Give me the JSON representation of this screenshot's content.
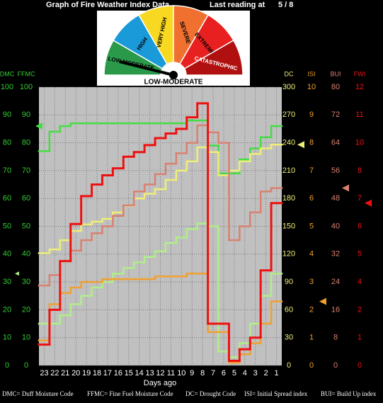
{
  "header": {
    "title": "Graph of Fire Weather Index Data",
    "last_reading_label": "Last reading at",
    "last_reading": "5 / 8"
  },
  "gauge": {
    "segments": [
      "LOW-MODERATE",
      "HIGH",
      "VERY HIGH",
      "SEVERE",
      "EXTREME",
      "CATASTROPHIC"
    ],
    "reading": "LOW-MODERATE"
  },
  "chart_data": {
    "type": "step",
    "xlabel": "Days ago",
    "grid": true,
    "categories": [
      "23",
      "22",
      "21",
      "20",
      "19",
      "18",
      "17",
      "16",
      "15",
      "14",
      "13",
      "12",
      "11",
      "10",
      "9",
      "8",
      "7",
      "6",
      "5",
      "4",
      "3",
      "2",
      "1"
    ],
    "series": [
      {
        "name": "DMC",
        "color": "#b0ee88",
        "ylim": [
          0,
          100
        ],
        "yticks": [
          0,
          10,
          20,
          30,
          40,
          50,
          60,
          70,
          80,
          90,
          100
        ],
        "values": [
          15,
          15,
          18,
          22,
          25,
          28,
          30,
          33,
          35,
          37,
          39,
          41,
          44,
          46,
          49,
          51,
          50,
          5,
          3,
          8,
          15,
          25,
          33
        ]
      },
      {
        "name": "FFMC",
        "color": "#44dd44",
        "ylim": [
          0,
          100
        ],
        "yticks": [
          0,
          10,
          20,
          30,
          40,
          50,
          60,
          70,
          80,
          90,
          100
        ],
        "values": [
          77,
          84,
          86,
          87,
          87,
          87,
          87,
          87,
          87,
          87,
          87,
          87,
          87,
          87,
          88,
          88,
          79,
          69,
          69,
          74,
          78,
          82,
          86
        ]
      },
      {
        "name": "DC",
        "color": "#eeee77",
        "ylim": [
          0,
          300
        ],
        "yticks": [
          0,
          30,
          60,
          90,
          120,
          150,
          180,
          210,
          240,
          270,
          300
        ],
        "values": [
          121,
          125,
          135,
          145,
          152,
          155,
          158,
          165,
          172,
          180,
          185,
          190,
          200,
          210,
          220,
          235,
          230,
          205,
          210,
          220,
          228,
          234,
          238
        ]
      },
      {
        "name": "ISI",
        "color": "#f0a030",
        "ylim": [
          0,
          10
        ],
        "yticks": [
          0,
          1,
          2,
          3,
          4,
          5,
          6,
          7,
          8,
          9,
          10
        ],
        "values": [
          0.9,
          2.2,
          2.6,
          2.8,
          3.0,
          3.0,
          3.1,
          3.1,
          3.1,
          3.1,
          3.1,
          3.2,
          3.2,
          3.2,
          3.3,
          3.3,
          1.2,
          1.2,
          0.1,
          0.4,
          0.8,
          1.5,
          2.3
        ]
      },
      {
        "name": "BUI",
        "color": "#d98070",
        "ylim": [
          0,
          80
        ],
        "yticks": [
          0,
          8,
          16,
          24,
          32,
          40,
          48,
          56,
          64,
          72,
          80
        ],
        "values": [
          23,
          26,
          30,
          33,
          36,
          38,
          40,
          43,
          46,
          50,
          52,
          55,
          58,
          61,
          64,
          69,
          67,
          64,
          36,
          40,
          44,
          50,
          51
        ]
      },
      {
        "name": "FWI",
        "color": "#ee1111",
        "ylim": [
          0,
          12
        ],
        "yticks": [
          0,
          {
            "value": 1.2,
            "label": "1"
          },
          {
            "value": 2.4,
            "label": "2"
          },
          {
            "value": 3.6,
            "label": "4"
          },
          {
            "value": 4.8,
            "label": "5"
          },
          6,
          {
            "value": 7.2,
            "label": "7"
          },
          {
            "value": 8.4,
            "label": "8"
          },
          {
            "value": 9.6,
            "label": "10"
          },
          {
            "value": 10.8,
            "label": "11"
          },
          12
        ],
        "values": [
          0.9,
          2.4,
          4.5,
          6.1,
          7.3,
          7.8,
          8.2,
          8.5,
          9.0,
          9.2,
          9.5,
          9.8,
          10.0,
          10.2,
          10.7,
          11.3,
          1.8,
          1.8,
          0.2,
          0.7,
          1.2,
          4.1,
          7.0
        ]
      }
    ]
  },
  "footer": [
    "DMC= Duff Moisture Code",
    "FFMC= Fine Fuel Moisture Code",
    "DC= Drought Code",
    "ISI= Initial Spread index",
    "BUI= Build Up index"
  ]
}
